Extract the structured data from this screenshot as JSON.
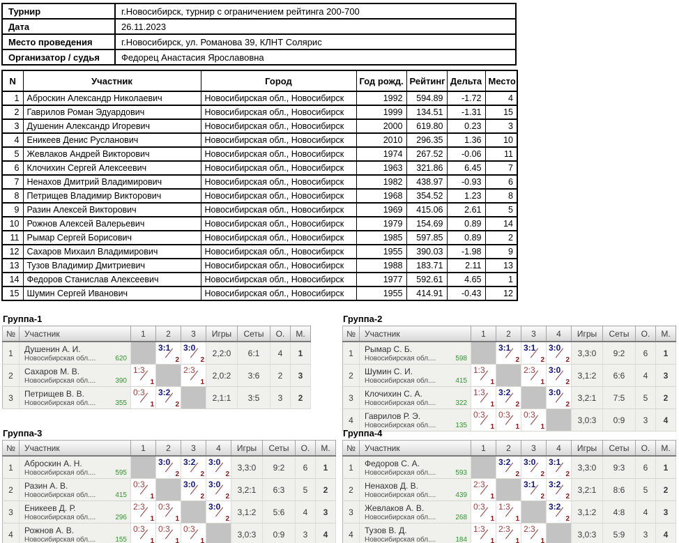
{
  "info_table": {
    "rows": [
      {
        "label": "Турнир",
        "value": "г.Новосибирск, турнир с ограничением рейтинга 200-700"
      },
      {
        "label": "Дата",
        "value": "26.11.2023"
      },
      {
        "label": "Место проведения",
        "value": "г.Новосибирск, ул. Романова 39, КЛНТ Солярис"
      },
      {
        "label": "Организатор / судья",
        "value": "Федорец Анастасия Ярославовна"
      }
    ]
  },
  "standings_table": {
    "headers": [
      "N",
      "Участник",
      "Город",
      "Год рожд.",
      "Рейтинг",
      "Дельта",
      "Место"
    ],
    "rows": [
      {
        "n": "1",
        "name": "Аброскин Александр Николаевич",
        "city": "Новосибирская обл., Новосибирск",
        "year": "1992",
        "rating": "594.89",
        "delta": "-1.72",
        "place": "4"
      },
      {
        "n": "2",
        "name": "Гаврилов Роман Эдуардович",
        "city": "Новосибирская обл., Новосибирск",
        "year": "1999",
        "rating": "134.51",
        "delta": "-1.31",
        "place": "15"
      },
      {
        "n": "3",
        "name": "Душенин Александр Игоревич",
        "city": "Новосибирская обл., Новосибирск",
        "year": "2000",
        "rating": "619.80",
        "delta": "0.23",
        "place": "3"
      },
      {
        "n": "4",
        "name": "Еникеев Денис Русланович",
        "city": "Новосибирская обл., Новосибирск",
        "year": "2010",
        "rating": "296.35",
        "delta": "1.36",
        "place": "10"
      },
      {
        "n": "5",
        "name": "Жевлаков Андрей Викторович",
        "city": "Новосибирская обл., Новосибирск",
        "year": "1974",
        "rating": "267.52",
        "delta": "-0.06",
        "place": "11"
      },
      {
        "n": "6",
        "name": "Клочихин Сергей Алексеевич",
        "city": "Новосибирская обл., Новосибирск",
        "year": "1963",
        "rating": "321.86",
        "delta": "6.45",
        "place": "7"
      },
      {
        "n": "7",
        "name": "Ненахов Дмитрий Владимирович",
        "city": "Новосибирская обл., Новосибирск",
        "year": "1982",
        "rating": "438.97",
        "delta": "-0.93",
        "place": "6"
      },
      {
        "n": "8",
        "name": "Петрищев Владимир Викторович",
        "city": "Новосибирская обл., Новосибирск",
        "year": "1968",
        "rating": "354.52",
        "delta": "1.23",
        "place": "8"
      },
      {
        "n": "9",
        "name": "Разин Алексей Викторович",
        "city": "Новосибирская обл., Новосибирск",
        "year": "1969",
        "rating": "415.06",
        "delta": "2.61",
        "place": "5"
      },
      {
        "n": "10",
        "name": "Рожнов Алексей Валерьевич",
        "city": "Новосибирская обл., Новосибирск",
        "year": "1979",
        "rating": "154.69",
        "delta": "0.89",
        "place": "14"
      },
      {
        "n": "11",
        "name": "Рымар Сергей Борисович",
        "city": "Новосибирская обл., Новосибирск",
        "year": "1985",
        "rating": "597.85",
        "delta": "0.89",
        "place": "2"
      },
      {
        "n": "12",
        "name": "Сахаров Михаил Владимирович",
        "city": "Новосибирская обл., Новосибирск",
        "year": "1955",
        "rating": "390.03",
        "delta": "-1.98",
        "place": "9"
      },
      {
        "n": "13",
        "name": "Тузов Владимир Дмитриевич",
        "city": "Новосибирская обл., Новосибирск",
        "year": "1988",
        "rating": "183.71",
        "delta": "2.11",
        "place": "13"
      },
      {
        "n": "14",
        "name": "Федоров Станислав Алексеевич",
        "city": "Новосибирская обл., Новосибирск",
        "year": "1977",
        "rating": "592.61",
        "delta": "4.65",
        "place": "1"
      },
      {
        "n": "15",
        "name": "Шумин Сергей Иванович",
        "city": "Новосибирская обл., Новосибирск",
        "year": "1955",
        "rating": "414.91",
        "delta": "-0.43",
        "place": "12"
      }
    ]
  },
  "group_common_headers": {
    "num": "№",
    "player": "Участник",
    "igry": "Игры",
    "sety": "Сеты",
    "o": "О.",
    "m": "М."
  },
  "groups": [
    {
      "title": "Группа-1",
      "game_headers": [
        "1",
        "2",
        "3"
      ],
      "players": [
        {
          "num": "1",
          "name": "Душенин А. И.",
          "region": "Новосибирская обл....",
          "rating": "620",
          "results": [
            {
              "self": true
            },
            {
              "score": "3:1",
              "pts": "2",
              "win": true
            },
            {
              "score": "3:0",
              "pts": "2",
              "win": true
            }
          ],
          "igry": "2,2:0",
          "sety": "6:1",
          "o": "4",
          "m": "1"
        },
        {
          "num": "2",
          "name": "Сахаров М. В.",
          "region": "Новосибирская обл....",
          "rating": "390",
          "results": [
            {
              "score": "1:3",
              "pts": "1",
              "win": false
            },
            {
              "self": true
            },
            {
              "score": "2:3",
              "pts": "1",
              "win": false
            }
          ],
          "igry": "2,0:2",
          "sety": "3:6",
          "o": "2",
          "m": "3"
        },
        {
          "num": "3",
          "name": "Петрищев В. В.",
          "region": "Новосибирская обл....",
          "rating": "355",
          "results": [
            {
              "score": "0:3",
              "pts": "1",
              "win": false
            },
            {
              "score": "3:2",
              "pts": "2",
              "win": true
            },
            {
              "self": true
            }
          ],
          "igry": "2,1:1",
          "sety": "3:5",
          "o": "3",
          "m": "2"
        }
      ]
    },
    {
      "title": "Группа-2",
      "game_headers": [
        "1",
        "2",
        "3",
        "4"
      ],
      "players": [
        {
          "num": "1",
          "name": "Рымар С. Б.",
          "region": "Новосибирская обл....",
          "rating": "598",
          "results": [
            {
              "self": true
            },
            {
              "score": "3:1",
              "pts": "2",
              "win": true
            },
            {
              "score": "3:1",
              "pts": "2",
              "win": true
            },
            {
              "score": "3:0",
              "pts": "2",
              "win": true
            }
          ],
          "igry": "3,3:0",
          "sety": "9:2",
          "o": "6",
          "m": "1"
        },
        {
          "num": "2",
          "name": "Шумин С. И.",
          "region": "Новосибирская обл....",
          "rating": "415",
          "results": [
            {
              "score": "1:3",
              "pts": "1",
              "win": false
            },
            {
              "self": true
            },
            {
              "score": "2:3",
              "pts": "1",
              "win": false
            },
            {
              "score": "3:0",
              "pts": "2",
              "win": true
            }
          ],
          "igry": "3,1:2",
          "sety": "6:6",
          "o": "4",
          "m": "3"
        },
        {
          "num": "3",
          "name": "Клочихин С. А.",
          "region": "Новосибирская обл....",
          "rating": "322",
          "results": [
            {
              "score": "1:3",
              "pts": "1",
              "win": false
            },
            {
              "score": "3:2",
              "pts": "2",
              "win": true
            },
            {
              "self": true
            },
            {
              "score": "3:0",
              "pts": "2",
              "win": true
            }
          ],
          "igry": "3,2:1",
          "sety": "7:5",
          "o": "5",
          "m": "2"
        },
        {
          "num": "4",
          "name": "Гаврилов Р. Э.",
          "region": "Новосибирская обл....",
          "rating": "135",
          "results": [
            {
              "score": "0:3",
              "pts": "1",
              "win": false
            },
            {
              "score": "0:3",
              "pts": "1",
              "win": false
            },
            {
              "score": "0:3",
              "pts": "1",
              "win": false
            },
            {
              "self": true
            }
          ],
          "igry": "3,0:3",
          "sety": "0:9",
          "o": "3",
          "m": "4"
        }
      ]
    },
    {
      "title": "Группа-3",
      "game_headers": [
        "1",
        "2",
        "3",
        "4"
      ],
      "players": [
        {
          "num": "1",
          "name": "Аброскин А. Н.",
          "region": "Новосибирская обл....",
          "rating": "595",
          "results": [
            {
              "self": true
            },
            {
              "score": "3:0",
              "pts": "2",
              "win": true
            },
            {
              "score": "3:2",
              "pts": "2",
              "win": true
            },
            {
              "score": "3:0",
              "pts": "2",
              "win": true
            }
          ],
          "igry": "3,3:0",
          "sety": "9:2",
          "o": "6",
          "m": "1"
        },
        {
          "num": "2",
          "name": "Разин А. В.",
          "region": "Новосибирская обл....",
          "rating": "415",
          "results": [
            {
              "score": "0:3",
              "pts": "1",
              "win": false
            },
            {
              "self": true
            },
            {
              "score": "3:0",
              "pts": "2",
              "win": true
            },
            {
              "score": "3:0",
              "pts": "2",
              "win": true
            }
          ],
          "igry": "3,2:1",
          "sety": "6:3",
          "o": "5",
          "m": "2"
        },
        {
          "num": "3",
          "name": "Еникеев Д. Р.",
          "region": "Новосибирская обл....",
          "rating": "296",
          "results": [
            {
              "score": "2:3",
              "pts": "1",
              "win": false
            },
            {
              "score": "0:3",
              "pts": "1",
              "win": false
            },
            {
              "self": true
            },
            {
              "score": "3:0",
              "pts": "2",
              "win": true
            }
          ],
          "igry": "3,1:2",
          "sety": "5:6",
          "o": "4",
          "m": "3"
        },
        {
          "num": "4",
          "name": "Рожнов А. В.",
          "region": "Новосибирская обл....",
          "rating": "155",
          "results": [
            {
              "score": "0:3",
              "pts": "1",
              "win": false
            },
            {
              "score": "0:3",
              "pts": "1",
              "win": false
            },
            {
              "score": "0:3",
              "pts": "1",
              "win": false
            },
            {
              "self": true
            }
          ],
          "igry": "3,0:3",
          "sety": "0:9",
          "o": "3",
          "m": "4"
        }
      ]
    },
    {
      "title": "Группа-4",
      "game_headers": [
        "1",
        "2",
        "3",
        "4"
      ],
      "players": [
        {
          "num": "1",
          "name": "Федоров С. А.",
          "region": "Новосибирская обл....",
          "rating": "593",
          "results": [
            {
              "self": true
            },
            {
              "score": "3:2",
              "pts": "2",
              "win": true
            },
            {
              "score": "3:0",
              "pts": "2",
              "win": true
            },
            {
              "score": "3:1",
              "pts": "2",
              "win": true
            }
          ],
          "igry": "3,3:0",
          "sety": "9:3",
          "o": "6",
          "m": "1"
        },
        {
          "num": "2",
          "name": "Ненахов Д. В.",
          "region": "Новосибирская обл....",
          "rating": "439",
          "results": [
            {
              "score": "2:3",
              "pts": "1",
              "win": false
            },
            {
              "self": true
            },
            {
              "score": "3:1",
              "pts": "2",
              "win": true
            },
            {
              "score": "3:2",
              "pts": "2",
              "win": true
            }
          ],
          "igry": "3,2:1",
          "sety": "8:6",
          "o": "5",
          "m": "2"
        },
        {
          "num": "3",
          "name": "Жевлаков А. В.",
          "region": "Новосибирская обл....",
          "rating": "268",
          "results": [
            {
              "score": "0:3",
              "pts": "1",
              "win": false
            },
            {
              "score": "1:3",
              "pts": "1",
              "win": false
            },
            {
              "self": true
            },
            {
              "score": "3:2",
              "pts": "2",
              "win": true
            }
          ],
          "igry": "3,1:2",
          "sety": "4:8",
          "o": "4",
          "m": "3"
        },
        {
          "num": "4",
          "name": "Тузов В. Д.",
          "region": "Новосибирская обл....",
          "rating": "184",
          "results": [
            {
              "score": "1:3",
              "pts": "1",
              "win": false
            },
            {
              "score": "2:3",
              "pts": "1",
              "win": false
            },
            {
              "score": "2:3",
              "pts": "1",
              "win": false
            },
            {
              "self": true
            }
          ],
          "igry": "3,0:3",
          "sety": "5:9",
          "o": "3",
          "m": "4"
        }
      ]
    }
  ],
  "colors": {
    "win_score": "#14147e",
    "loss_score": "#9a4141",
    "points_badge": "#8b1414",
    "rating_green": "#2a9a2a",
    "place_navy": "#1c1c87",
    "self_cell_gray": "#c3c3c3",
    "group_row_bg": "#f0f0ec"
  }
}
